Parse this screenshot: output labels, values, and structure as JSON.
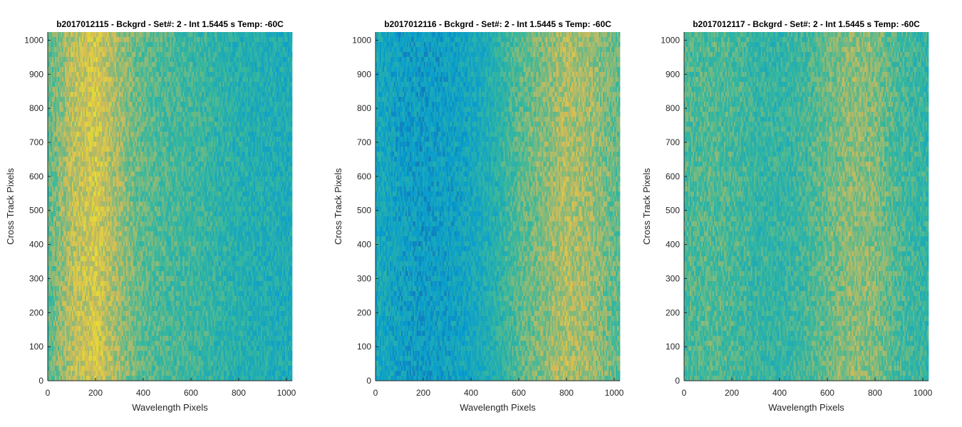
{
  "chart_data": [
    {
      "type": "heatmap",
      "title": "b2017012115 - Bckgrd - Set#: 2 - Int 1.5445 s Temp: -60C",
      "xlabel": "Wavelength Pixels",
      "ylabel": "Cross Track Pixels",
      "xlim": [
        0,
        1024
      ],
      "ylim": [
        0,
        1024
      ],
      "xticks": [
        0,
        200,
        400,
        600,
        800,
        1000
      ],
      "yticks": [
        0,
        100,
        200,
        300,
        400,
        500,
        600,
        700,
        800,
        900,
        1000
      ],
      "colormap": "parula",
      "intensity_profile": {
        "x": [
          0,
          100,
          200,
          300,
          400,
          500,
          600,
          700,
          800,
          900,
          1024
        ],
        "relative_level": [
          0.55,
          0.72,
          0.78,
          0.66,
          0.56,
          0.52,
          0.5,
          0.46,
          0.42,
          0.4,
          0.38
        ]
      }
    },
    {
      "type": "heatmap",
      "title": "b2017012116 - Bckgrd - Set#: 2 - Int 1.5445 s Temp: -60C",
      "xlabel": "Wavelength Pixels",
      "ylabel": "Cross Track Pixels",
      "xlim": [
        0,
        1024
      ],
      "ylim": [
        0,
        1024
      ],
      "xticks": [
        0,
        200,
        400,
        600,
        800,
        1000
      ],
      "yticks": [
        0,
        100,
        200,
        300,
        400,
        500,
        600,
        700,
        800,
        900,
        1000
      ],
      "colormap": "parula",
      "intensity_profile": {
        "x": [
          0,
          100,
          200,
          300,
          400,
          500,
          600,
          700,
          800,
          900,
          1024
        ],
        "relative_level": [
          0.36,
          0.3,
          0.28,
          0.3,
          0.34,
          0.42,
          0.55,
          0.62,
          0.7,
          0.66,
          0.56
        ]
      }
    },
    {
      "type": "heatmap",
      "title": "b2017012117 - Bckgrd - Set#: 2 - Int 1.5445 s Temp: -60C",
      "xlabel": "Wavelength Pixels",
      "ylabel": "Cross Track Pixels",
      "xlim": [
        0,
        1024
      ],
      "ylim": [
        0,
        1024
      ],
      "xticks": [
        0,
        200,
        400,
        600,
        800,
        1000
      ],
      "yticks": [
        0,
        100,
        200,
        300,
        400,
        500,
        600,
        700,
        800,
        900,
        1000
      ],
      "colormap": "parula",
      "intensity_profile": {
        "x": [
          0,
          100,
          200,
          300,
          400,
          500,
          600,
          700,
          800,
          900,
          1024
        ],
        "relative_level": [
          0.52,
          0.54,
          0.52,
          0.48,
          0.46,
          0.5,
          0.58,
          0.64,
          0.62,
          0.52,
          0.46
        ]
      }
    }
  ]
}
